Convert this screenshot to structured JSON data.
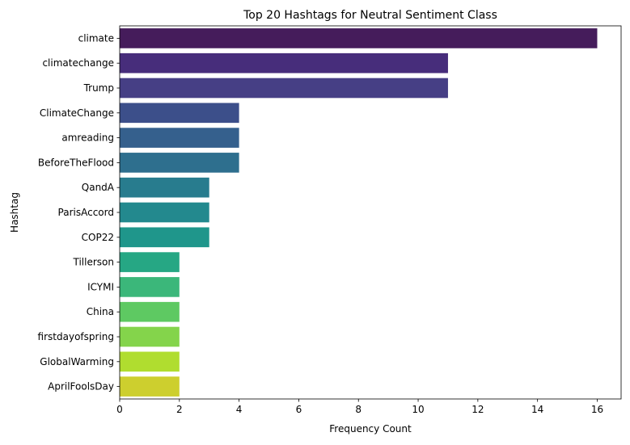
{
  "chart_data": {
    "type": "bar",
    "orientation": "horizontal",
    "title": "Top 20 Hashtags for Neutral Sentiment Class",
    "xlabel": "Frequency Count",
    "ylabel": "Hashtag",
    "xlim": [
      0,
      16.8
    ],
    "xticks": [
      "0",
      "2",
      "4",
      "6",
      "8",
      "10",
      "12",
      "14",
      "16"
    ],
    "grid": false,
    "categories": [
      "climate",
      "climatechange",
      "Trump",
      "ClimateChange",
      "amreading",
      "BeforeTheFlood",
      "QandA",
      "ParisAccord",
      "COP22",
      "Tillerson",
      "ICYMI",
      "China",
      "firstdayofspring",
      "GlobalWarming",
      "AprilFoolsDay"
    ],
    "values": [
      16,
      11,
      11,
      4,
      4,
      4,
      3,
      3,
      3,
      2,
      2,
      2,
      2,
      2,
      2
    ],
    "colors": [
      "#451c5b",
      "#472d7b",
      "#463f85",
      "#3c4f8a",
      "#35608d",
      "#2e6f8e",
      "#287c8e",
      "#23898e",
      "#1f968b",
      "#26a784",
      "#3bb77a",
      "#5ec962",
      "#84d44b",
      "#b0dd2f",
      "#cdcf2e"
    ]
  }
}
